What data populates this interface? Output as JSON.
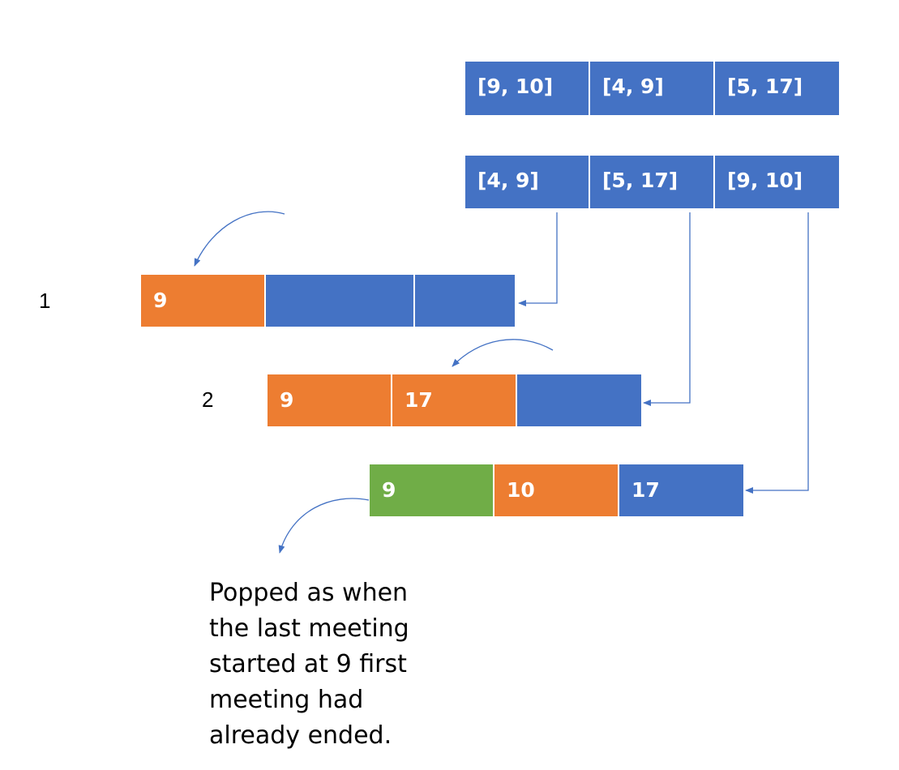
{
  "unsorted_intervals": [
    "[9, 10]",
    "[4, 9]",
    "[5, 17]"
  ],
  "sorted_intervals": [
    "[4, 9]",
    "[5, 17]",
    "[9, 10]"
  ],
  "steps": [
    {
      "label": "1",
      "cells": [
        "9",
        "",
        ""
      ]
    },
    {
      "label": "2",
      "cells": [
        "9",
        "17",
        ""
      ]
    },
    {
      "label": "",
      "cells": [
        "9",
        "10",
        "17"
      ]
    }
  ],
  "caption": {
    "lines": [
      "Popped as when",
      "the last meeting",
      "started at 9 first",
      "meeting had",
      "already ended."
    ]
  },
  "colors": {
    "blue": "#4472C4",
    "orange": "#ED7D31",
    "green": "#70AD47",
    "arrow": "#4472C4"
  }
}
